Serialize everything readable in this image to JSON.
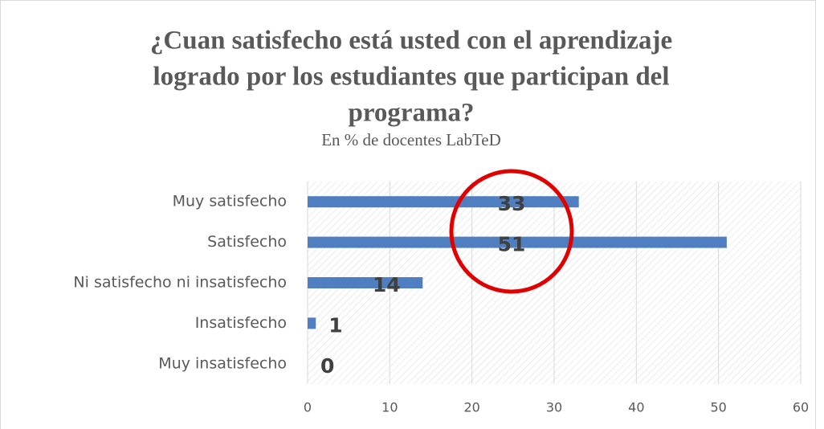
{
  "chart_data": {
    "type": "bar",
    "orientation": "horizontal",
    "title": [
      "¿Cuan satisfecho está usted con el aprendizaje",
      "logrado por los estudiantes que participan del",
      "programa?"
    ],
    "subtitle": "En % de docentes LabTeD",
    "categories": [
      "Muy satisfecho",
      "Satisfecho",
      "Ni satisfecho ni insatisfecho",
      "Insatisfecho",
      "Muy insatisfecho"
    ],
    "values": [
      33,
      51,
      14,
      1,
      0
    ],
    "color": "#4f7fc0",
    "xlim": [
      0,
      60
    ],
    "xticks": [
      0,
      10,
      20,
      30,
      40,
      50,
      60
    ],
    "grid": true
  }
}
